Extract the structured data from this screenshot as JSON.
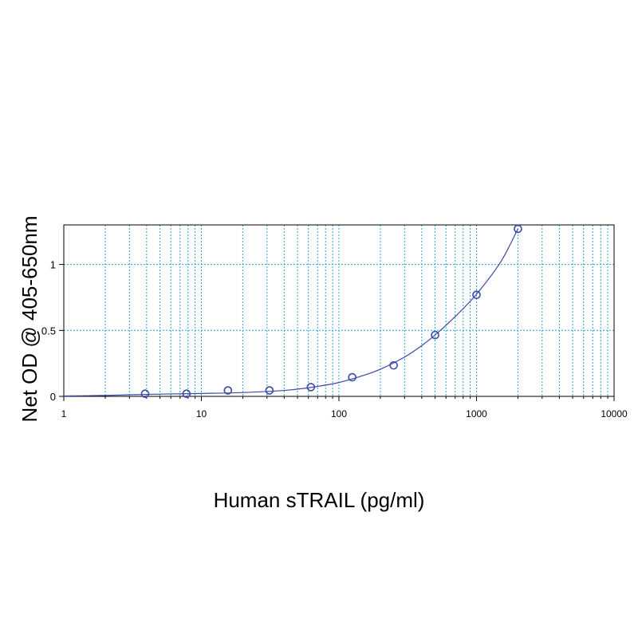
{
  "chart_data": {
    "type": "scatter",
    "title": "",
    "xlabel": "Human sTRAIL (pg/ml)",
    "ylabel": "Net OD @ 405-650nm",
    "xscale": "log",
    "xlim": [
      1,
      10000
    ],
    "ylim": [
      0,
      1.3
    ],
    "x_ticks": [
      1,
      10,
      100,
      1000,
      10000
    ],
    "x_tick_labels": [
      "1",
      "10",
      "100",
      "1000",
      "10000"
    ],
    "y_ticks": [
      0,
      0.5,
      1
    ],
    "y_tick_labels": [
      "0",
      "0.5",
      "1"
    ],
    "grid": true,
    "legend": "none",
    "series": [
      {
        "kind": "points",
        "x": [
          3.9,
          7.8,
          15.6,
          31.25,
          62.5,
          125,
          250,
          500,
          1000,
          2000
        ],
        "y": [
          0.02,
          0.02,
          0.045,
          0.045,
          0.07,
          0.145,
          0.235,
          0.465,
          0.77,
          1.27
        ]
      },
      {
        "kind": "fit-curve",
        "x": [
          1,
          2,
          3,
          5,
          10,
          20,
          40,
          60,
          100,
          150,
          200,
          300,
          400,
          500,
          700,
          1000,
          1500,
          2000
        ],
        "y": [
          0.003,
          0.007,
          0.012,
          0.017,
          0.022,
          0.029,
          0.045,
          0.065,
          0.105,
          0.158,
          0.206,
          0.298,
          0.385,
          0.465,
          0.605,
          0.775,
          1.02,
          1.27
        ]
      }
    ],
    "colors": {
      "curve": "#3b4aa8",
      "points": "#3b4aa8",
      "grid": "#29a3d6",
      "axes": "#000000"
    }
  }
}
